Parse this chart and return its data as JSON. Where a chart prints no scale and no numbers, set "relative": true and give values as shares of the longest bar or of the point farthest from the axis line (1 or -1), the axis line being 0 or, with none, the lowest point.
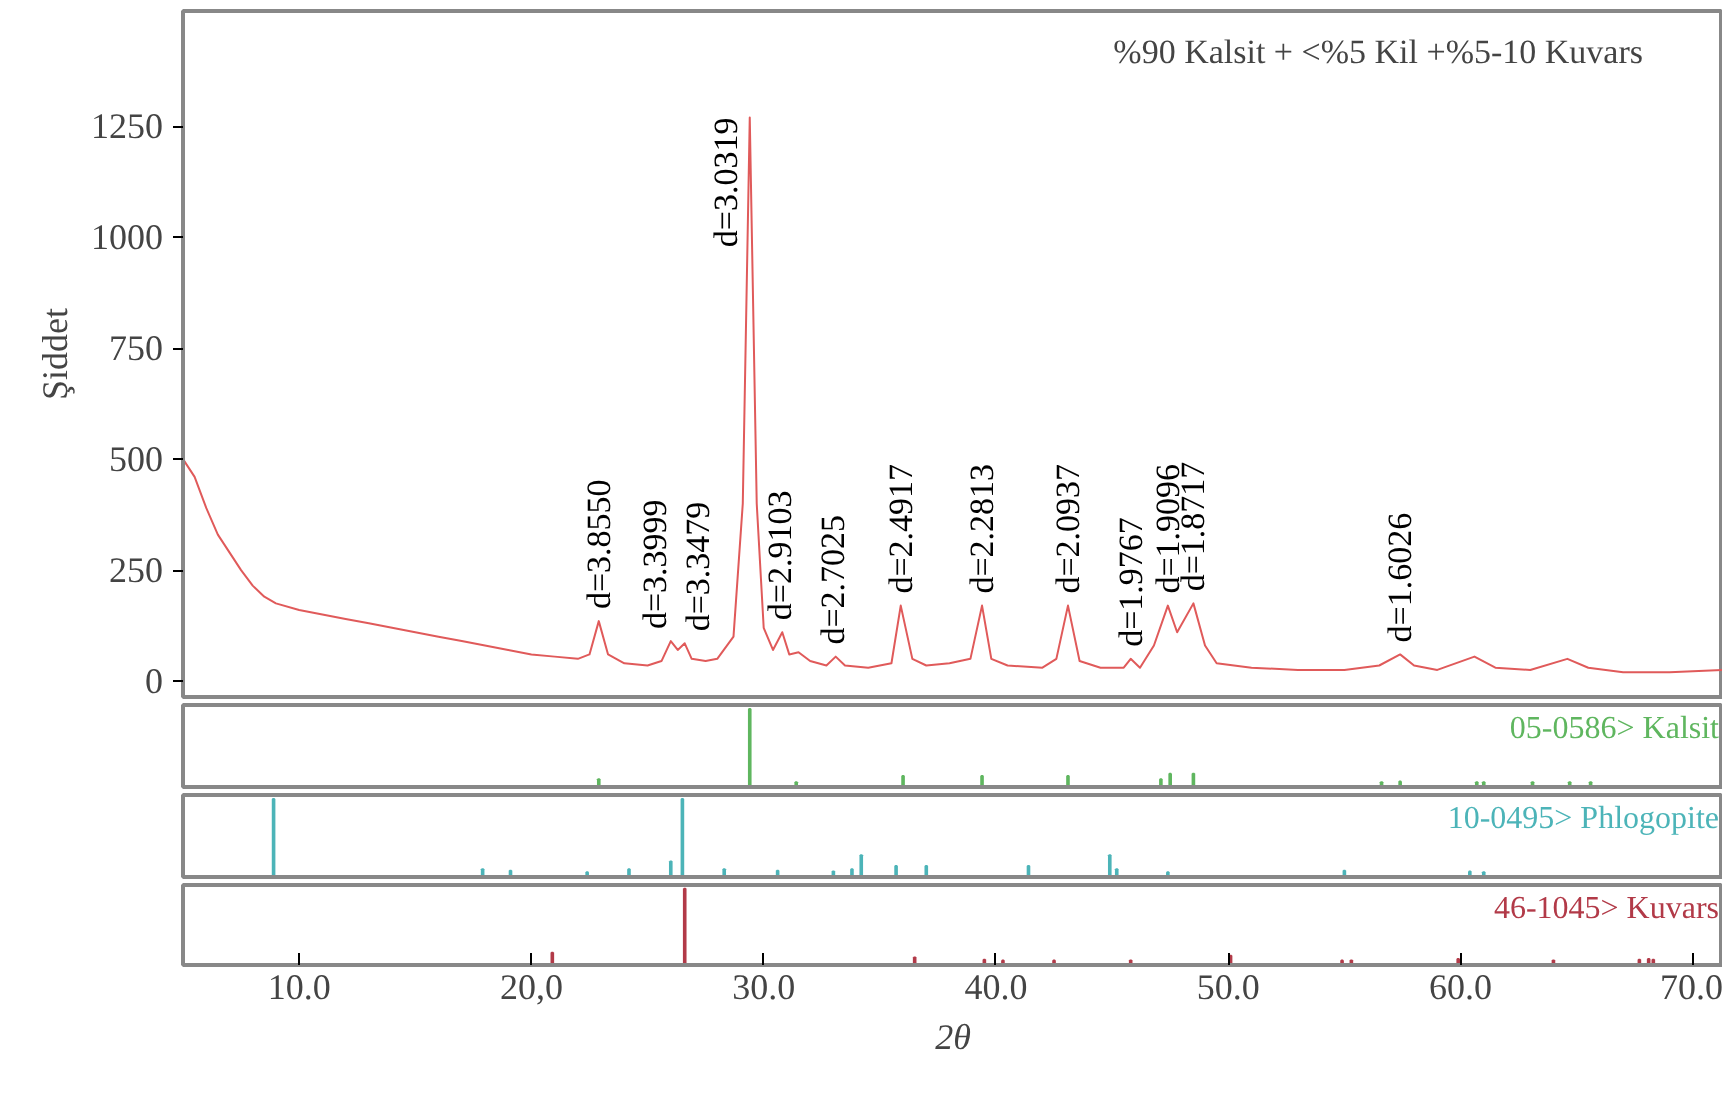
{
  "chart_data": [
    {
      "type": "line",
      "ylabel": "Şiddet",
      "xlim": [
        5,
        71.3
      ],
      "ylim": [
        -36,
        1510
      ],
      "yticks": [
        0,
        250,
        500,
        750,
        1000,
        1250
      ],
      "tick_labels": "y",
      "annotations": [
        "%90 Kalsit + <%5 Kil +%5-10 Kuvars",
        {
          "text": "d=3.8550",
          "x": 22.9,
          "y": 135
        },
        {
          "text": "d=3.3999",
          "x": 26.1,
          "y": 90
        },
        {
          "text": "d=3.3479",
          "x": 26.4,
          "y": 85
        },
        {
          "text": "d=3.0319",
          "x": 29.4,
          "y": 1270
        },
        {
          "text": "d=2.9103",
          "x": 30.7,
          "y": 110
        },
        {
          "text": "d=2.7025",
          "x": 33.0,
          "y": 55
        },
        {
          "text": "d=2.4917",
          "x": 35.9,
          "y": 170
        },
        {
          "text": "d=2.2813",
          "x": 39.4,
          "y": 170
        },
        {
          "text": "d=2.0937",
          "x": 43.1,
          "y": 170
        },
        {
          "text": "d=1.9767",
          "x": 45.8,
          "y": 50
        },
        {
          "text": "d=1.9096",
          "x": 47.4,
          "y": 170
        },
        {
          "text": "d=1.8717",
          "x": 48.5,
          "y": 175
        },
        {
          "text": "d=1.6026",
          "x": 57.4,
          "y": 60
        }
      ],
      "series": [
        {
          "color": "#e05a5a",
          "x": [
            5,
            5.5,
            6,
            6.5,
            7,
            7.5,
            8,
            8.5,
            9,
            10,
            11,
            12,
            13,
            14,
            15,
            16,
            17,
            18,
            19,
            20,
            21,
            22,
            22.5,
            22.9,
            23.3,
            24,
            25,
            25.6,
            26.0,
            26.3,
            26.6,
            26.9,
            27.5,
            28,
            28.7,
            29.1,
            29.4,
            29.7,
            30.0,
            30.4,
            30.8,
            31.1,
            31.5,
            32,
            32.7,
            33.1,
            33.5,
            34.5,
            35.5,
            35.9,
            36.4,
            37,
            38,
            38.9,
            39.4,
            39.8,
            40.5,
            42,
            42.6,
            43.1,
            43.6,
            44.5,
            45.5,
            45.8,
            46.2,
            46.8,
            47.4,
            47.8,
            48.5,
            49,
            49.5,
            51,
            53,
            55,
            56.5,
            57.4,
            58,
            59,
            60.6,
            61.5,
            63,
            64.6,
            65.5,
            67,
            69,
            71.3
          ],
          "values": [
            500,
            460,
            390,
            330,
            290,
            250,
            215,
            190,
            175,
            160,
            150,
            140,
            130,
            120,
            110,
            100,
            90,
            80,
            70,
            60,
            55,
            50,
            60,
            135,
            60,
            40,
            35,
            45,
            90,
            70,
            85,
            50,
            45,
            50,
            100,
            400,
            1270,
            400,
            120,
            70,
            110,
            60,
            65,
            45,
            35,
            55,
            35,
            30,
            40,
            170,
            50,
            35,
            40,
            50,
            170,
            50,
            35,
            30,
            50,
            170,
            45,
            30,
            30,
            50,
            30,
            80,
            170,
            110,
            175,
            80,
            40,
            30,
            25,
            25,
            35,
            60,
            35,
            25,
            55,
            30,
            25,
            50,
            30,
            20,
            20,
            25
          ]
        }
      ]
    },
    {
      "type": "bar",
      "relative": true,
      "xlim": [
        5,
        71.3
      ],
      "tick_labels": false,
      "series": [
        {
          "name": "05-0586> Kalsit",
          "color": "#5fb65f",
          "x": [
            22.9,
            29.4,
            31.4,
            36.0,
            39.4,
            43.1,
            47.1,
            47.5,
            48.5,
            56.6,
            57.4,
            60.7,
            61.0,
            63.1,
            64.7,
            65.6
          ],
          "values": [
            0.1,
            1,
            0.06,
            0.14,
            0.14,
            0.14,
            0.1,
            0.17,
            0.17,
            0.06,
            0.07,
            0.06,
            0.06,
            0.06,
            0.06,
            0.06
          ]
        }
      ]
    },
    {
      "type": "bar",
      "relative": true,
      "xlim": [
        5,
        71.3
      ],
      "tick_labels": false,
      "series": [
        {
          "name": "10-0495> Phlogopite",
          "color": "#4cb4b8",
          "x": [
            8.9,
            17.9,
            19.1,
            22.4,
            24.2,
            26.0,
            26.5,
            28.3,
            30.6,
            33.0,
            33.8,
            34.2,
            35.7,
            37.0,
            41.4,
            44.9,
            45.2,
            47.4,
            55.0,
            60.4,
            61.0
          ],
          "values": [
            1,
            0.1,
            0.08,
            0.06,
            0.1,
            0.2,
            1,
            0.1,
            0.08,
            0.07,
            0.1,
            0.28,
            0.14,
            0.14,
            0.14,
            0.28,
            0.1,
            0.06,
            0.08,
            0.07,
            0.06
          ]
        }
      ]
    },
    {
      "type": "bar",
      "relative": true,
      "xlim": [
        5,
        71.3
      ],
      "tick_labels": "x",
      "xlabel": "2θ",
      "xticks": [
        {
          "value": 10,
          "label": "10.0"
        },
        {
          "value": 20,
          "label": "20,0"
        },
        {
          "value": 30,
          "label": "30.0"
        },
        {
          "value": 40,
          "label": "40.0"
        },
        {
          "value": 50,
          "label": "50.0"
        },
        {
          "value": 60,
          "label": "60.0"
        },
        {
          "value": 70,
          "label": "70.0"
        }
      ],
      "series": [
        {
          "name": "46-1045> Kuvars",
          "color": "#b23a48",
          "x": [
            20.9,
            26.6,
            36.5,
            39.5,
            40.3,
            42.5,
            45.8,
            50.1,
            54.9,
            55.3,
            59.9,
            64.0,
            67.7,
            68.1,
            68.3
          ],
          "values": [
            0.16,
            1,
            0.1,
            0.07,
            0.06,
            0.06,
            0.06,
            0.12,
            0.06,
            0.06,
            0.08,
            0.06,
            0.07,
            0.08,
            0.07
          ]
        }
      ]
    }
  ]
}
